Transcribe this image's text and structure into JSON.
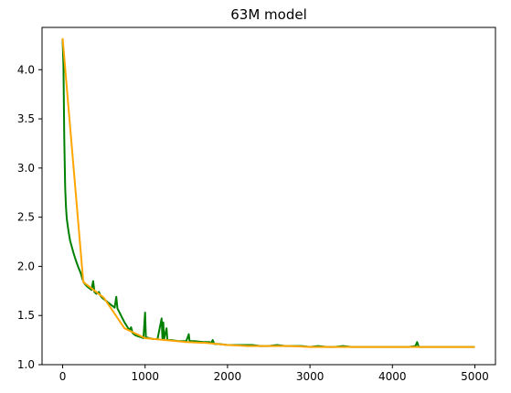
{
  "chart_data": {
    "type": "line",
    "title": "63M model",
    "xlabel": "",
    "ylabel": "",
    "xlim": [
      -250,
      5250
    ],
    "ylim": [
      1.0,
      4.43
    ],
    "xticks": [
      0,
      1000,
      2000,
      3000,
      4000,
      5000
    ],
    "yticks": [
      1.0,
      1.5,
      2.0,
      2.5,
      3.0,
      3.5,
      4.0
    ],
    "ytick_labels": [
      "1.0",
      "1.5",
      "2.0",
      "2.5",
      "3.0",
      "3.5",
      "4.0"
    ],
    "grid": false,
    "legend": "none",
    "series": [
      {
        "color": "#008000",
        "points": [
          [
            0,
            4.31
          ],
          [
            10,
            4.05
          ],
          [
            20,
            3.3
          ],
          [
            30,
            2.8
          ],
          [
            40,
            2.6
          ],
          [
            50,
            2.48
          ],
          [
            70,
            2.36
          ],
          [
            90,
            2.26
          ],
          [
            110,
            2.2
          ],
          [
            130,
            2.14
          ],
          [
            160,
            2.06
          ],
          [
            190,
            1.99
          ],
          [
            220,
            1.93
          ],
          [
            240,
            1.87
          ],
          [
            260,
            1.83
          ],
          [
            290,
            1.8
          ],
          [
            320,
            1.78
          ],
          [
            350,
            1.76
          ],
          [
            370,
            1.85
          ],
          [
            385,
            1.74
          ],
          [
            410,
            1.72
          ],
          [
            440,
            1.74
          ],
          [
            460,
            1.7
          ],
          [
            480,
            1.68
          ],
          [
            510,
            1.66
          ],
          [
            540,
            1.64
          ],
          [
            570,
            1.62
          ],
          [
            600,
            1.6
          ],
          [
            630,
            1.58
          ],
          [
            650,
            1.69
          ],
          [
            665,
            1.57
          ],
          [
            690,
            1.53
          ],
          [
            720,
            1.48
          ],
          [
            750,
            1.43
          ],
          [
            780,
            1.39
          ],
          [
            810,
            1.35
          ],
          [
            830,
            1.38
          ],
          [
            850,
            1.32
          ],
          [
            880,
            1.3
          ],
          [
            910,
            1.29
          ],
          [
            950,
            1.28
          ],
          [
            980,
            1.27
          ],
          [
            1000,
            1.53
          ],
          [
            1010,
            1.28
          ],
          [
            1050,
            1.27
          ],
          [
            1100,
            1.26
          ],
          [
            1150,
            1.26
          ],
          [
            1200,
            1.47
          ],
          [
            1210,
            1.26
          ],
          [
            1220,
            1.43
          ],
          [
            1230,
            1.26
          ],
          [
            1260,
            1.37
          ],
          [
            1270,
            1.25
          ],
          [
            1320,
            1.25
          ],
          [
            1400,
            1.24
          ],
          [
            1500,
            1.24
          ],
          [
            1530,
            1.31
          ],
          [
            1540,
            1.24
          ],
          [
            1600,
            1.24
          ],
          [
            1700,
            1.23
          ],
          [
            1780,
            1.23
          ],
          [
            1800,
            1.22
          ],
          [
            1820,
            1.25
          ],
          [
            1840,
            1.21
          ],
          [
            1900,
            1.21
          ],
          [
            2000,
            1.2
          ],
          [
            2100,
            1.2
          ],
          [
            2200,
            1.2
          ],
          [
            2300,
            1.2
          ],
          [
            2400,
            1.19
          ],
          [
            2500,
            1.19
          ],
          [
            2600,
            1.2
          ],
          [
            2700,
            1.19
          ],
          [
            2800,
            1.19
          ],
          [
            2900,
            1.19
          ],
          [
            3000,
            1.18
          ],
          [
            3100,
            1.19
          ],
          [
            3200,
            1.18
          ],
          [
            3300,
            1.18
          ],
          [
            3400,
            1.19
          ],
          [
            3500,
            1.18
          ],
          [
            3600,
            1.18
          ],
          [
            3700,
            1.18
          ],
          [
            3800,
            1.18
          ],
          [
            3900,
            1.18
          ],
          [
            4000,
            1.18
          ],
          [
            4100,
            1.18
          ],
          [
            4200,
            1.18
          ],
          [
            4280,
            1.19
          ],
          [
            4300,
            1.23
          ],
          [
            4320,
            1.18
          ],
          [
            4400,
            1.18
          ],
          [
            4500,
            1.18
          ],
          [
            4600,
            1.18
          ],
          [
            4700,
            1.18
          ],
          [
            4800,
            1.18
          ],
          [
            4900,
            1.18
          ],
          [
            5000,
            1.18
          ]
        ]
      },
      {
        "color": "#ffa500",
        "points": [
          [
            0,
            4.32
          ],
          [
            250,
            1.84
          ],
          [
            500,
            1.68
          ],
          [
            750,
            1.37
          ],
          [
            1000,
            1.27
          ],
          [
            1250,
            1.25
          ],
          [
            1500,
            1.23
          ],
          [
            1750,
            1.22
          ],
          [
            2000,
            1.2
          ],
          [
            2250,
            1.19
          ],
          [
            2500,
            1.19
          ],
          [
            2750,
            1.19
          ],
          [
            3000,
            1.18
          ],
          [
            3250,
            1.18
          ],
          [
            3500,
            1.18
          ],
          [
            3750,
            1.18
          ],
          [
            4000,
            1.18
          ],
          [
            4250,
            1.18
          ],
          [
            4500,
            1.18
          ],
          [
            4750,
            1.18
          ],
          [
            5000,
            1.18
          ]
        ]
      }
    ]
  }
}
